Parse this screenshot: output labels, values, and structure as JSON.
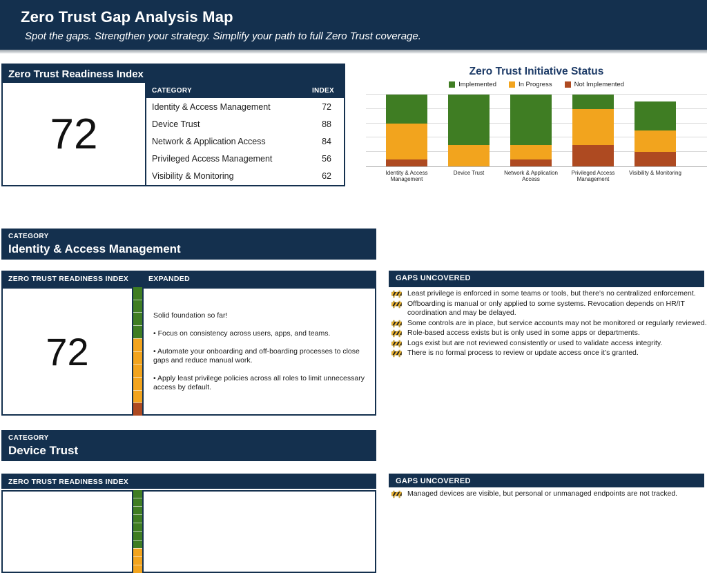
{
  "header": {
    "title": "Zero Trust Gap Analysis Map",
    "subtitle": "Spot the gaps. Strengthen your strategy. Simplify your path to full Zero Trust coverage."
  },
  "colors": {
    "navy": "#14304E",
    "green": "#3F7D23",
    "orange": "#F2A41E",
    "red": "#AE4A21"
  },
  "readiness": {
    "panel_title": "Zero Trust Readiness Index",
    "overall_index": "72",
    "table": {
      "headers": {
        "category": "CATEGORY",
        "index": "INDEX"
      },
      "rows": [
        {
          "category": "Identity & Access Management",
          "index": "72"
        },
        {
          "category": "Device Trust",
          "index": "88"
        },
        {
          "category": "Network & Application Access",
          "index": "84"
        },
        {
          "category": "Privileged Access Management",
          "index": "56"
        },
        {
          "category": "Visibility & Monitoring",
          "index": "62"
        }
      ]
    }
  },
  "chart_data": {
    "type": "bar",
    "stacked": true,
    "title": "Zero Trust Initiative Status",
    "categories": [
      "Identity & Access\nManagement",
      "Device Trust",
      "Network & Application\nAccess",
      "Privileged Access\nManagement",
      "Visibility & Monitoring"
    ],
    "series": [
      {
        "name": "Implemented",
        "color": "#3F7D23",
        "values": [
          4,
          7,
          7,
          2,
          4
        ]
      },
      {
        "name": "In Progress",
        "color": "#F2A41E",
        "values": [
          5,
          3,
          2,
          5,
          3
        ]
      },
      {
        "name": "Not Implemented",
        "color": "#AE4A21",
        "values": [
          1,
          0,
          1,
          3,
          2
        ]
      }
    ],
    "stack_order_bottom_to_top": [
      "Not Implemented",
      "In Progress",
      "Implemented"
    ],
    "xlabel": "",
    "ylabel": "",
    "ylim": [
      0,
      10
    ],
    "gridlines_at": [
      2,
      4,
      6,
      8,
      10
    ],
    "grid": true,
    "legend_position": "top"
  },
  "sections": [
    {
      "kicker": "CATEGORY",
      "name": "Identity & Access Management",
      "index_label": "ZERO TRUST READINESS INDEX",
      "expanded_label": "EXPANDED",
      "index": "72",
      "meter": {
        "total_units": 10,
        "segments": [
          {
            "color": "green",
            "units": 4
          },
          {
            "color": "orange",
            "units": 5
          },
          {
            "color": "red",
            "units": 1
          }
        ]
      },
      "expanded_paragraphs": [
        "Solid foundation so far!",
        "• Focus on consistency across users, apps, and teams.",
        "• Automate your onboarding and off-boarding processes to close gaps and reduce manual work.",
        "• Apply least privilege policies across all roles to limit unnecessary access by default."
      ],
      "gaps_label": "GAPS UNCOVERED",
      "gaps": [
        "Least privilege is enforced in some teams or tools, but there’s no centralized enforcement.",
        "Offboarding is manual or only applied to some systems. Revocation depends on HR/IT coordination and may be delayed.",
        "Some controls are in place, but service accounts may not be monitored or regularly reviewed.",
        "Role-based access exists but is only used in some apps or departments.",
        "Logs exist but are not reviewed consistently or used to validate access integrity.",
        "There is no formal process to review or update access once it’s granted."
      ]
    },
    {
      "kicker": "CATEGORY",
      "name": "Device Trust",
      "index_label": "ZERO TRUST READINESS INDEX",
      "meter": {
        "total_units": 10,
        "segments": [
          {
            "color": "green",
            "units": 7
          },
          {
            "color": "orange",
            "units": 3
          }
        ]
      },
      "gaps_label": "GAPS UNCOVERED",
      "gaps": [
        "Managed devices are visible, but personal or unmanaged endpoints are not tracked."
      ]
    }
  ]
}
